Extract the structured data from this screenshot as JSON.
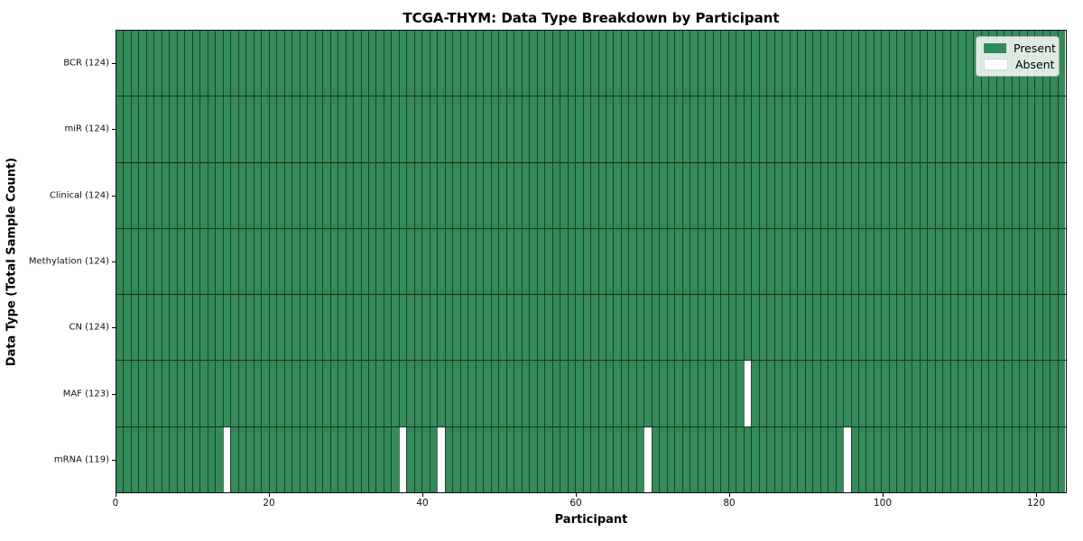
{
  "chart_data": {
    "type": "heatmap",
    "title": "TCGA-THYM: Data Type Breakdown by Participant",
    "xlabel": "Participant",
    "ylabel": "Data Type (Total Sample Count)",
    "x_ticks": [
      0,
      20,
      40,
      60,
      80,
      100,
      120
    ],
    "x_max": 124,
    "n_participants": 124,
    "rows": [
      {
        "label": "BCR (124)",
        "data_type": "BCR",
        "sample_count": 124,
        "absent_participants": []
      },
      {
        "label": "miR (124)",
        "data_type": "miR",
        "sample_count": 124,
        "absent_participants": []
      },
      {
        "label": "Clinical (124)",
        "data_type": "Clinical",
        "sample_count": 124,
        "absent_participants": []
      },
      {
        "label": "Methylation (124)",
        "data_type": "Methylation",
        "sample_count": 124,
        "absent_participants": []
      },
      {
        "label": "CN (124)",
        "data_type": "CN",
        "sample_count": 124,
        "absent_participants": []
      },
      {
        "label": "MAF (123)",
        "data_type": "MAF",
        "sample_count": 123,
        "absent_participants": [
          82
        ]
      },
      {
        "label": "mRNA (119)",
        "data_type": "mRNA",
        "sample_count": 119,
        "absent_participants": [
          14,
          37,
          42,
          69,
          95
        ]
      }
    ],
    "legend": [
      {
        "label": "Present",
        "color": "#348a58"
      },
      {
        "label": "Absent",
        "color": "#ffffff"
      }
    ],
    "colors": {
      "present": "#348a58",
      "absent": "#ffffff",
      "cell_edge": "rgba(10,28,16,0.62)",
      "row_separator": "#1b2c20",
      "plot_border": "#101010"
    },
    "legend_position": "upper right",
    "grid": "cell-edges"
  }
}
